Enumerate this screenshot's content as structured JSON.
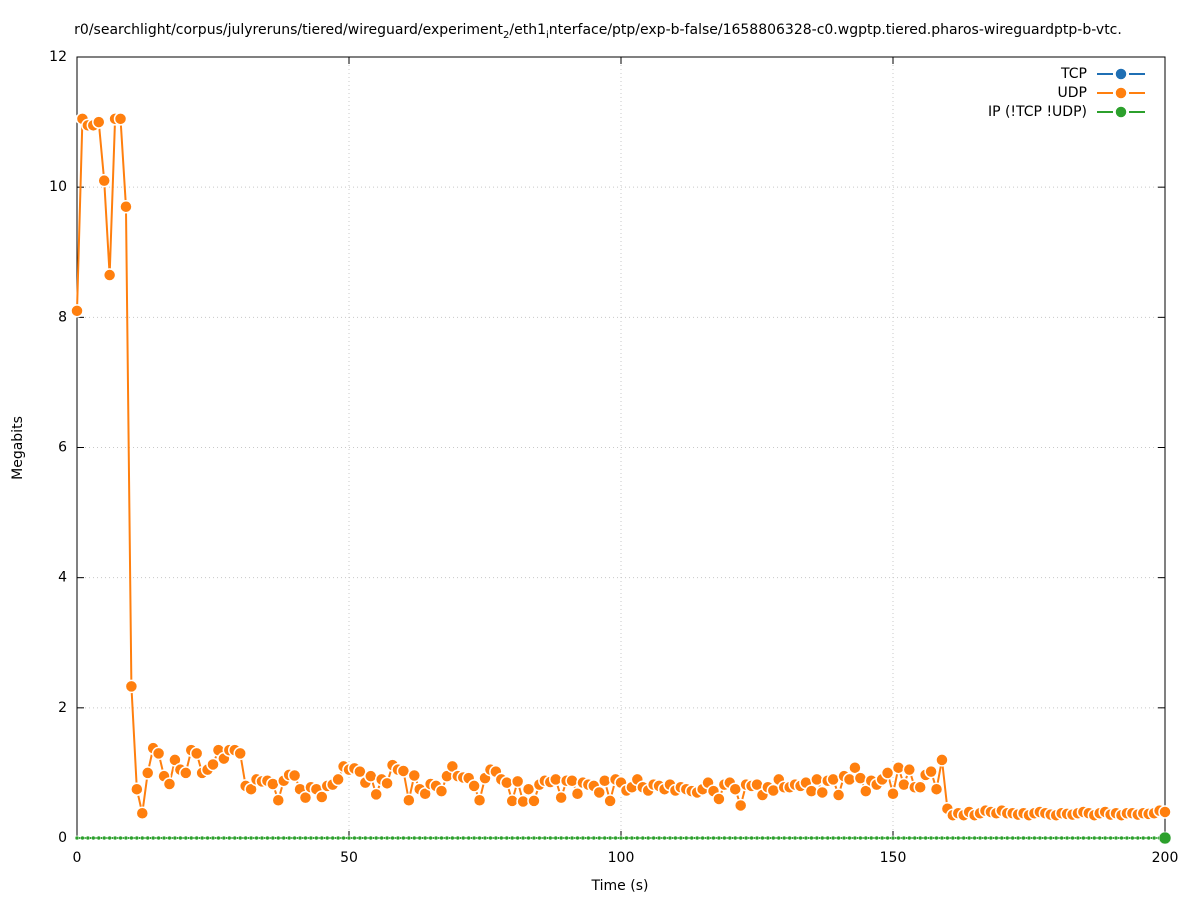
{
  "chart_data": {
    "type": "line",
    "title": [
      "r0/searchlight/corpus/julyreruns/tiered/wireguard/experiment",
      "2",
      "/eth1",
      "i",
      "nterface/ptp/exp-b-false/1658806328-c0.wgptp.tiered.pharos-wireguardptp-b-vtc."
    ],
    "xlabel": "Time (s)",
    "ylabel": "Megabits",
    "xlim": [
      0,
      200
    ],
    "ylim": [
      0,
      12
    ],
    "xticks": [
      0,
      50,
      100,
      150,
      200
    ],
    "yticks": [
      0,
      2,
      4,
      6,
      8,
      10,
      12
    ],
    "grid": true,
    "legend": "top-right",
    "x": [
      0,
      1,
      2,
      3,
      4,
      5,
      6,
      7,
      8,
      9,
      10,
      11,
      12,
      13,
      14,
      15,
      16,
      17,
      18,
      19,
      20,
      21,
      22,
      23,
      24,
      25,
      26,
      27,
      28,
      29,
      30,
      31,
      32,
      33,
      34,
      35,
      36,
      37,
      38,
      39,
      40,
      41,
      42,
      43,
      44,
      45,
      46,
      47,
      48,
      49,
      50,
      51,
      52,
      53,
      54,
      55,
      56,
      57,
      58,
      59,
      60,
      61,
      62,
      63,
      64,
      65,
      66,
      67,
      68,
      69,
      70,
      71,
      72,
      73,
      74,
      75,
      76,
      77,
      78,
      79,
      80,
      81,
      82,
      83,
      84,
      85,
      86,
      87,
      88,
      89,
      90,
      91,
      92,
      93,
      94,
      95,
      96,
      97,
      98,
      99,
      100,
      101,
      102,
      103,
      104,
      105,
      106,
      107,
      108,
      109,
      110,
      111,
      112,
      113,
      114,
      115,
      116,
      117,
      118,
      119,
      120,
      121,
      122,
      123,
      124,
      125,
      126,
      127,
      128,
      129,
      130,
      131,
      132,
      133,
      134,
      135,
      136,
      137,
      138,
      139,
      140,
      141,
      142,
      143,
      144,
      145,
      146,
      147,
      148,
      149,
      150,
      151,
      152,
      153,
      154,
      155,
      156,
      157,
      158,
      159,
      160,
      161,
      162,
      163,
      164,
      165,
      166,
      167,
      168,
      169,
      170,
      171,
      172,
      173,
      174,
      175,
      176,
      177,
      178,
      179,
      180,
      181,
      182,
      183,
      184,
      185,
      186,
      187,
      188,
      189,
      190,
      191,
      192,
      193,
      194,
      195,
      196,
      197,
      198,
      199,
      200
    ],
    "series": [
      {
        "name": "TCP",
        "color": "#1f6fb4",
        "values": [
          0,
          0,
          0,
          0,
          0,
          0,
          0,
          0,
          0,
          0,
          0,
          0,
          0,
          0,
          0,
          0,
          0,
          0,
          0,
          0,
          0,
          0,
          0,
          0,
          0,
          0,
          0,
          0,
          0,
          0,
          0,
          0,
          0,
          0,
          0,
          0,
          0,
          0,
          0,
          0,
          0,
          0,
          0,
          0,
          0,
          0,
          0,
          0,
          0,
          0,
          0,
          0,
          0,
          0,
          0,
          0,
          0,
          0,
          0,
          0,
          0,
          0,
          0,
          0,
          0,
          0,
          0,
          0,
          0,
          0,
          0,
          0,
          0,
          0,
          0,
          0,
          0,
          0,
          0,
          0,
          0,
          0,
          0,
          0,
          0,
          0,
          0,
          0,
          0,
          0,
          0,
          0,
          0,
          0,
          0,
          0,
          0,
          0,
          0,
          0,
          0,
          0,
          0,
          0,
          0,
          0,
          0,
          0,
          0,
          0,
          0,
          0,
          0,
          0,
          0,
          0,
          0,
          0,
          0,
          0,
          0,
          0,
          0,
          0,
          0,
          0,
          0,
          0,
          0,
          0,
          0,
          0,
          0,
          0,
          0,
          0,
          0,
          0,
          0,
          0,
          0,
          0,
          0,
          0,
          0,
          0,
          0,
          0,
          0,
          0,
          0,
          0,
          0,
          0,
          0,
          0,
          0,
          0,
          0,
          0,
          0,
          0,
          0,
          0,
          0,
          0,
          0,
          0,
          0,
          0,
          0,
          0,
          0,
          0,
          0,
          0,
          0,
          0,
          0,
          0,
          0,
          0,
          0,
          0,
          0,
          0,
          0,
          0,
          0,
          0,
          0,
          0,
          0,
          0,
          0,
          0,
          0,
          0,
          0,
          0,
          0
        ]
      },
      {
        "name": "UDP",
        "color": "#ff7f0e",
        "values": [
          8.1,
          11.05,
          10.95,
          10.95,
          11.0,
          10.1,
          8.65,
          11.05,
          11.05,
          9.7,
          2.33,
          0.75,
          0.38,
          1.0,
          1.38,
          1.3,
          0.95,
          0.83,
          1.2,
          1.05,
          1.0,
          1.35,
          1.3,
          1.0,
          1.05,
          1.13,
          1.35,
          1.22,
          1.35,
          1.35,
          1.3,
          0.8,
          0.75,
          0.9,
          0.87,
          0.88,
          0.83,
          0.58,
          0.88,
          0.97,
          0.96,
          0.75,
          0.62,
          0.78,
          0.75,
          0.63,
          0.8,
          0.82,
          0.9,
          1.1,
          1.05,
          1.07,
          1.02,
          0.85,
          0.95,
          0.67,
          0.9,
          0.84,
          1.12,
          1.05,
          1.03,
          0.58,
          0.96,
          0.75,
          0.68,
          0.83,
          0.8,
          0.72,
          0.95,
          1.1,
          0.95,
          0.93,
          0.92,
          0.8,
          0.58,
          0.92,
          1.05,
          1.02,
          0.9,
          0.85,
          0.57,
          0.87,
          0.56,
          0.75,
          0.57,
          0.82,
          0.88,
          0.86,
          0.9,
          0.62,
          0.88,
          0.88,
          0.68,
          0.85,
          0.82,
          0.8,
          0.7,
          0.88,
          0.57,
          0.9,
          0.85,
          0.73,
          0.78,
          0.9,
          0.78,
          0.73,
          0.82,
          0.8,
          0.75,
          0.82,
          0.73,
          0.78,
          0.75,
          0.72,
          0.7,
          0.75,
          0.85,
          0.72,
          0.6,
          0.82,
          0.85,
          0.75,
          0.5,
          0.82,
          0.8,
          0.82,
          0.66,
          0.78,
          0.73,
          0.9,
          0.78,
          0.78,
          0.82,
          0.8,
          0.85,
          0.72,
          0.9,
          0.7,
          0.88,
          0.9,
          0.66,
          0.95,
          0.9,
          1.08,
          0.92,
          0.72,
          0.88,
          0.82,
          0.9,
          1.0,
          0.68,
          1.08,
          0.82,
          1.05,
          0.78,
          0.78,
          0.97,
          1.02,
          0.75,
          1.2,
          0.45,
          0.35,
          0.38,
          0.35,
          0.4,
          0.35,
          0.38,
          0.42,
          0.4,
          0.38,
          0.42,
          0.38,
          0.38,
          0.36,
          0.38,
          0.35,
          0.38,
          0.4,
          0.38,
          0.36,
          0.35,
          0.38,
          0.37,
          0.36,
          0.38,
          0.4,
          0.38,
          0.35,
          0.38,
          0.4,
          0.36,
          0.38,
          0.35,
          0.38,
          0.38,
          0.36,
          0.38,
          0.37,
          0.38,
          0.42,
          0.4
        ]
      },
      {
        "name": "IP (!TCP  !UDP)",
        "color": "#2ca02c",
        "values": [
          0,
          0,
          0,
          0,
          0,
          0,
          0,
          0,
          0,
          0,
          0,
          0,
          0,
          0,
          0,
          0,
          0,
          0,
          0,
          0,
          0,
          0,
          0,
          0,
          0,
          0,
          0,
          0,
          0,
          0,
          0,
          0,
          0,
          0,
          0,
          0,
          0,
          0,
          0,
          0,
          0,
          0,
          0,
          0,
          0,
          0,
          0,
          0,
          0,
          0,
          0,
          0,
          0,
          0,
          0,
          0,
          0,
          0,
          0,
          0,
          0,
          0,
          0,
          0,
          0,
          0,
          0,
          0,
          0,
          0,
          0,
          0,
          0,
          0,
          0,
          0,
          0,
          0,
          0,
          0,
          0,
          0,
          0,
          0,
          0,
          0,
          0,
          0,
          0,
          0,
          0,
          0,
          0,
          0,
          0,
          0,
          0,
          0,
          0,
          0,
          0,
          0,
          0,
          0,
          0,
          0,
          0,
          0,
          0,
          0,
          0,
          0,
          0,
          0,
          0,
          0,
          0,
          0,
          0,
          0,
          0,
          0,
          0,
          0,
          0,
          0,
          0,
          0,
          0,
          0,
          0,
          0,
          0,
          0,
          0,
          0,
          0,
          0,
          0,
          0,
          0,
          0,
          0,
          0,
          0,
          0,
          0,
          0,
          0,
          0,
          0,
          0,
          0,
          0,
          0,
          0,
          0,
          0,
          0,
          0,
          0,
          0,
          0,
          0,
          0,
          0,
          0,
          0,
          0,
          0,
          0,
          0,
          0,
          0,
          0,
          0,
          0,
          0,
          0,
          0,
          0,
          0,
          0,
          0,
          0,
          0,
          0,
          0,
          0,
          0,
          0,
          0,
          0,
          0,
          0,
          0,
          0,
          0,
          0,
          0,
          0
        ]
      }
    ]
  }
}
